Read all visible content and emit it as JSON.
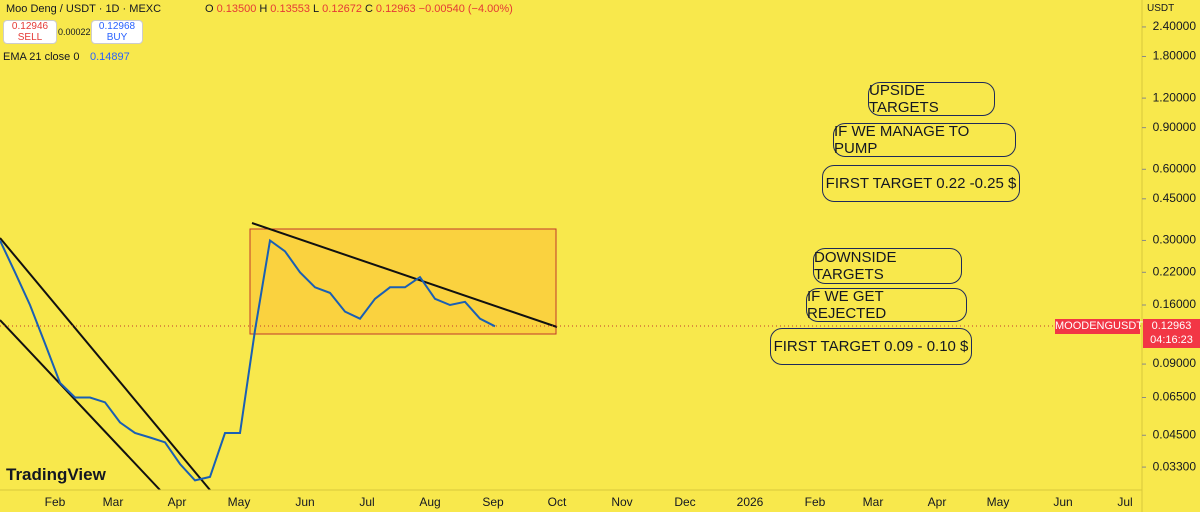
{
  "header": {
    "symbol": "Moo Deng / USDT · 1D · MEXC",
    "ohlc": {
      "o_label": "O",
      "open": "0.13500",
      "h_label": "H",
      "high": "0.13553",
      "l_label": "L",
      "low": "0.12672",
      "c_label": "C",
      "close": "0.12963",
      "change": "−0.00540 (−4.00%)"
    },
    "sell": {
      "price": "0.12946",
      "label": "SELL"
    },
    "spread": "0.00022",
    "buy": {
      "price": "0.12968",
      "label": "BUY"
    },
    "indicator": {
      "name": "EMA 21 close 0",
      "value": "0.14897"
    }
  },
  "price_axis": {
    "currency": "USDT",
    "log_scale": true,
    "ylim": [
      0.0264,
      3.12
    ],
    "ticks": [
      {
        "value": 2.4,
        "label": "2.40000"
      },
      {
        "value": 1.8,
        "label": "1.80000"
      },
      {
        "value": 1.2,
        "label": "1.20000"
      },
      {
        "value": 0.9,
        "label": "0.90000"
      },
      {
        "value": 0.6,
        "label": "0.60000"
      },
      {
        "value": 0.45,
        "label": "0.45000"
      },
      {
        "value": 0.3,
        "label": "0.30000"
      },
      {
        "value": 0.22,
        "label": "0.22000"
      },
      {
        "value": 0.16,
        "label": "0.16000"
      },
      {
        "value": 0.09,
        "label": "0.09000"
      },
      {
        "value": 0.065,
        "label": "0.06500"
      },
      {
        "value": 0.045,
        "label": "0.04500"
      },
      {
        "value": 0.033,
        "label": "0.03300"
      }
    ],
    "last": {
      "symbol": "MOODENGUSDT",
      "price": "0.12963",
      "countdown": "04:16:23"
    }
  },
  "time_axis": [
    "Feb",
    "Mar",
    "Apr",
    "May",
    "Jun",
    "Jul",
    "Aug",
    "Sep",
    "Oct",
    "Nov",
    "Dec",
    "2026",
    "Feb",
    "Mar",
    "Apr",
    "May",
    "Jun",
    "Jul"
  ],
  "price_series": {
    "color": "#1a5fb4",
    "values": [
      0.3,
      0.22,
      0.16,
      0.11,
      0.075,
      0.065,
      0.065,
      0.062,
      0.051,
      0.046,
      0.044,
      0.042,
      0.034,
      0.029,
      0.03,
      0.046,
      0.046,
      0.125,
      0.3,
      0.27,
      0.22,
      0.19,
      0.18,
      0.15,
      0.14,
      0.17,
      0.19,
      0.19,
      0.21,
      0.17,
      0.16,
      0.165,
      0.14,
      0.13
    ]
  },
  "annotations": [
    "UPSIDE TARGETS",
    "IF WE MANAGE TO PUMP",
    "FIRST TARGET 0.22 -0.25 $",
    "DOWNSIDE TARGETS",
    "IF WE GET REJECTED",
    "FIRST TARGET 0.09 - 0.10 $"
  ],
  "watermark": "TradingView"
}
